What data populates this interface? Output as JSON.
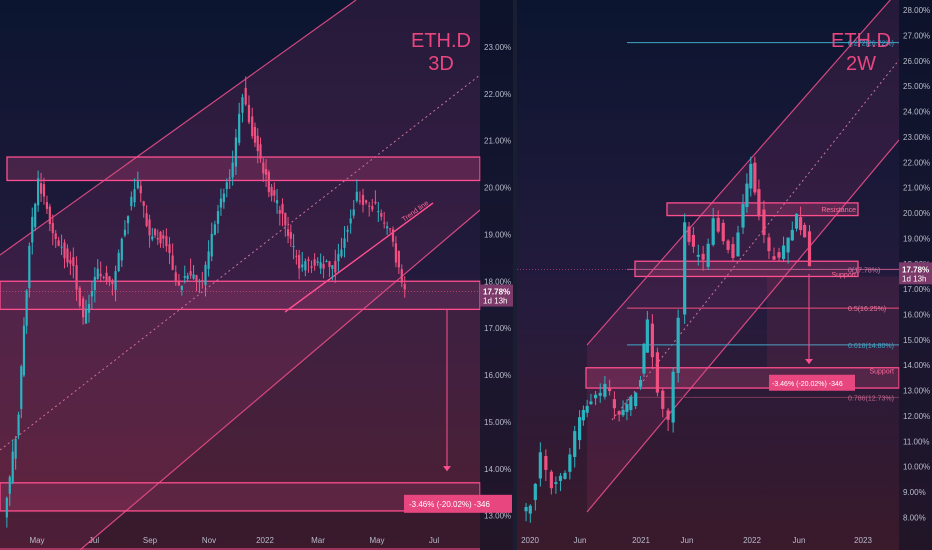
{
  "chart_data": [
    {
      "type": "candlestick",
      "title": "ETH.D",
      "subtitle": "3D",
      "xlabel": "",
      "ylabel": "",
      "x_ticks": [
        "May",
        "Jul",
        "Sep",
        "Nov",
        "2022",
        "Mar",
        "May",
        "Jul"
      ],
      "y_ticks": [
        "13.00%",
        "14.00%",
        "15.00%",
        "16.00%",
        "17.00%",
        "18.00%",
        "19.00%",
        "20.00%",
        "21.00%",
        "22.00%",
        "23.00%"
      ],
      "ylim": [
        12.8,
        24.0
      ],
      "price_label": "17.78%",
      "countdown_label": "1d 13h",
      "annotations": {
        "trend_line": "Trend line",
        "measure": "-3.46% (-20.02%) -346"
      },
      "zones": [
        {
          "name": "resistance",
          "low": 20.15,
          "high": 20.65
        },
        {
          "name": "support",
          "low": 17.4,
          "high": 18.0
        },
        {
          "name": "target",
          "low": 13.1,
          "high": 13.7
        }
      ],
      "price_path": [
        {
          "x": "2021-04-05",
          "close": 12.9
        },
        {
          "x": "2021-04-20",
          "close": 15.2
        },
        {
          "x": "2021-05-01",
          "close": 18.8
        },
        {
          "x": "2021-05-10",
          "close": 20.2
        },
        {
          "x": "2021-05-25",
          "close": 19.0
        },
        {
          "x": "2021-06-15",
          "close": 18.3
        },
        {
          "x": "2021-06-25",
          "close": 17.2
        },
        {
          "x": "2021-07-10",
          "close": 18.2
        },
        {
          "x": "2021-07-25",
          "close": 17.9
        },
        {
          "x": "2021-08-10",
          "close": 19.5
        },
        {
          "x": "2021-08-20",
          "close": 20.1
        },
        {
          "x": "2021-09-01",
          "close": 19.0
        },
        {
          "x": "2021-09-15",
          "close": 18.9
        },
        {
          "x": "2021-10-01",
          "close": 17.9
        },
        {
          "x": "2021-10-10",
          "close": 18.2
        },
        {
          "x": "2021-10-25",
          "close": 18.0
        },
        {
          "x": "2021-11-10",
          "close": 19.6
        },
        {
          "x": "2021-11-25",
          "close": 20.5
        },
        {
          "x": "2021-12-05",
          "close": 22.0
        },
        {
          "x": "2021-12-15",
          "close": 21.2
        },
        {
          "x": "2022-01-01",
          "close": 20.0
        },
        {
          "x": "2022-01-15",
          "close": 19.4
        },
        {
          "x": "2022-02-01",
          "close": 18.3
        },
        {
          "x": "2022-02-20",
          "close": 18.4
        },
        {
          "x": "2022-03-10",
          "close": 18.3
        },
        {
          "x": "2022-04-01",
          "close": 19.8
        },
        {
          "x": "2022-04-20",
          "close": 19.6
        },
        {
          "x": "2022-05-05",
          "close": 19.0
        },
        {
          "x": "2022-05-20",
          "close": 17.78
        }
      ]
    },
    {
      "type": "candlestick",
      "title": "ETH.D",
      "subtitle": "2W",
      "xlabel": "",
      "ylabel": "",
      "x_ticks": [
        "2020",
        "Jun",
        "2021",
        "Jun",
        "2022",
        "Jun",
        "2023"
      ],
      "y_ticks": [
        "8.00%",
        "9.00%",
        "10.00%",
        "11.00%",
        "12.00%",
        "13.00%",
        "14.00%",
        "15.00%",
        "16.00%",
        "17.00%",
        "18.00%",
        "19.00%",
        "20.00%",
        "21.00%",
        "22.00%",
        "23.00%",
        "24.00%",
        "25.00%",
        "26.00%",
        "27.00%",
        "28.00%"
      ],
      "ylim": [
        7.7,
        28.4
      ],
      "price_label": "17.78%",
      "countdown_label": "1d 13h",
      "annotations": {
        "resistance": "Resistance",
        "support_upper": "Support",
        "support_lower": "Support",
        "measure": "-3.46% (-20.02%) -346",
        "fib_0": "0(17.78%)",
        "fib_05": "0.5(16.25%)",
        "fib_0618": "0.618(14.80%)",
        "fib_0786": "0.786(12.73%)",
        "fib_top": "0.272(26.72%)"
      },
      "zones": [
        {
          "name": "resistance",
          "low": 19.9,
          "high": 20.4
        },
        {
          "name": "support",
          "low": 17.5,
          "high": 18.1
        },
        {
          "name": "support_low",
          "low": 13.1,
          "high": 13.9
        }
      ],
      "price_path": [
        {
          "x": "2019-12-20",
          "close": 8.2
        },
        {
          "x": "2020-01-15",
          "close": 8.5
        },
        {
          "x": "2020-02-15",
          "close": 10.5
        },
        {
          "x": "2020-03-20",
          "close": 9.2
        },
        {
          "x": "2020-05-01",
          "close": 9.8
        },
        {
          "x": "2020-06-15",
          "close": 12.0
        },
        {
          "x": "2020-07-20",
          "close": 12.5
        },
        {
          "x": "2020-09-01",
          "close": 13.2
        },
        {
          "x": "2020-10-15",
          "close": 12.0
        },
        {
          "x": "2020-11-20",
          "close": 12.6
        },
        {
          "x": "2020-12-20",
          "close": 13.6
        },
        {
          "x": "2021-01-10",
          "close": 15.8
        },
        {
          "x": "2021-02-10",
          "close": 12.8
        },
        {
          "x": "2021-03-15",
          "close": 11.8
        },
        {
          "x": "2021-04-15",
          "close": 16.0
        },
        {
          "x": "2021-05-05",
          "close": 19.6
        },
        {
          "x": "2021-06-01",
          "close": 18.5
        },
        {
          "x": "2021-07-01",
          "close": 18.0
        },
        {
          "x": "2021-08-01",
          "close": 19.8
        },
        {
          "x": "2021-09-01",
          "close": 19.0
        },
        {
          "x": "2021-10-01",
          "close": 18.4
        },
        {
          "x": "2021-11-01",
          "close": 20.2
        },
        {
          "x": "2021-11-25",
          "close": 21.8
        },
        {
          "x": "2021-12-20",
          "close": 20.0
        },
        {
          "x": "2022-01-20",
          "close": 18.5
        },
        {
          "x": "2022-02-20",
          "close": 18.2
        },
        {
          "x": "2022-03-20",
          "close": 18.9
        },
        {
          "x": "2022-04-15",
          "close": 19.8
        },
        {
          "x": "2022-05-10",
          "close": 19.2
        },
        {
          "x": "2022-05-25",
          "close": 17.78
        }
      ]
    }
  ]
}
